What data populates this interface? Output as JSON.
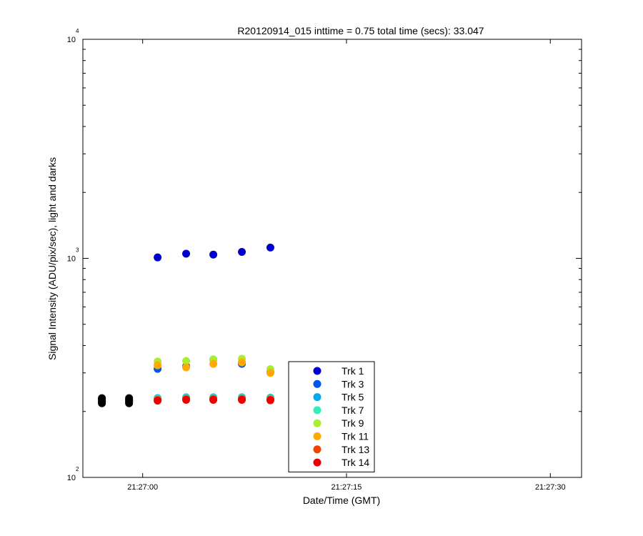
{
  "chart_data": {
    "type": "scatter",
    "title": "R20120914_015 inttime = 0.75 total time (secs): 33.047",
    "xlabel": "Date/Time (GMT)",
    "ylabel": "Signal Intensity (ADU/pix/sec), light and darks",
    "x_axis": {
      "type": "time",
      "unit": "seconds",
      "range": [
        "21:26:55.6",
        "21:27:32.3"
      ],
      "ticks": [
        {
          "label": "21:27:00",
          "value": "21:27:00"
        },
        {
          "label": "21:27:15",
          "value": "21:27:15"
        },
        {
          "label": "21:27:30",
          "value": "21:27:30"
        }
      ]
    },
    "y_axis": {
      "scale": "log",
      "range": [
        100,
        10000
      ],
      "ticks": [
        {
          "value": 100,
          "base": "10",
          "exp": "2"
        },
        {
          "value": 1000,
          "base": "10",
          "exp": "3"
        },
        {
          "value": 10000,
          "base": "10",
          "exp": "4"
        }
      ]
    },
    "grid": false,
    "legend_position": "bottom-center",
    "series": [
      {
        "name": "Trk 1",
        "color": "#0000cc",
        "x": [
          "21:27:01.1",
          "21:27:03.2",
          "21:27:05.2",
          "21:27:07.3",
          "21:27:09.4"
        ],
        "y": [
          1010,
          1050,
          1040,
          1070,
          1120
        ]
      },
      {
        "name": "Trk 3",
        "color": "#0055ee",
        "x": [
          "21:27:01.1",
          "21:27:03.2",
          "21:27:05.2",
          "21:27:07.3",
          "21:27:09.4"
        ],
        "y": [
          313,
          322,
          345,
          330,
          302
        ]
      },
      {
        "name": "Trk 5",
        "color": "#00aaee",
        "x": [
          "21:27:01.1",
          "21:27:03.2",
          "21:27:05.2",
          "21:27:07.3",
          "21:27:09.4"
        ],
        "y": [
          230,
          232,
          232,
          232,
          231
        ]
      },
      {
        "name": "Trk 7",
        "color": "#33eebb",
        "x": [
          "21:27:01.1",
          "21:27:03.2",
          "21:27:05.2",
          "21:27:07.3",
          "21:27:09.4"
        ],
        "y": [
          228,
          230,
          230,
          230,
          229
        ]
      },
      {
        "name": "Trk 9",
        "color": "#aaee33",
        "x": [
          "21:27:01.1",
          "21:27:03.2",
          "21:27:05.2",
          "21:27:07.3",
          "21:27:09.4"
        ],
        "y": [
          338,
          340,
          345,
          348,
          312
        ]
      },
      {
        "name": "Trk 11",
        "color": "#ffaa00",
        "x": [
          "21:27:01.1",
          "21:27:03.2",
          "21:27:05.2",
          "21:27:07.3",
          "21:27:09.4"
        ],
        "y": [
          325,
          318,
          330,
          335,
          300
        ]
      },
      {
        "name": "Trk 13",
        "color": "#ee4400",
        "x": [
          "21:27:01.1",
          "21:27:03.2",
          "21:27:05.2",
          "21:27:07.3",
          "21:27:09.4"
        ],
        "y": [
          226,
          228,
          228,
          228,
          227
        ]
      },
      {
        "name": "Trk 14",
        "color": "#ee0000",
        "x": [
          "21:27:01.1",
          "21:27:03.2",
          "21:27:05.2",
          "21:27:07.3",
          "21:27:09.4"
        ],
        "y": [
          224,
          226,
          226,
          226,
          225
        ]
      },
      {
        "name": "",
        "color": "#000000",
        "x": [
          "21:26:57.0",
          "21:26:57.0",
          "21:26:57.0",
          "21:26:57.0",
          "21:26:57.0",
          "21:26:59.0",
          "21:26:59.0",
          "21:26:59.0",
          "21:26:59.0",
          "21:26:59.0",
          "21:27:11.4",
          "21:27:11.4",
          "21:27:11.4",
          "21:27:11.4",
          "21:27:11.4",
          "21:27:13.5",
          "21:27:13.5",
          "21:27:13.5",
          "21:27:13.5",
          "21:27:13.5"
        ],
        "y": [
          218,
          221,
          224,
          227,
          230,
          218,
          221,
          224,
          227,
          230,
          218,
          221,
          224,
          227,
          230,
          218,
          221,
          224,
          227,
          230
        ]
      }
    ]
  }
}
